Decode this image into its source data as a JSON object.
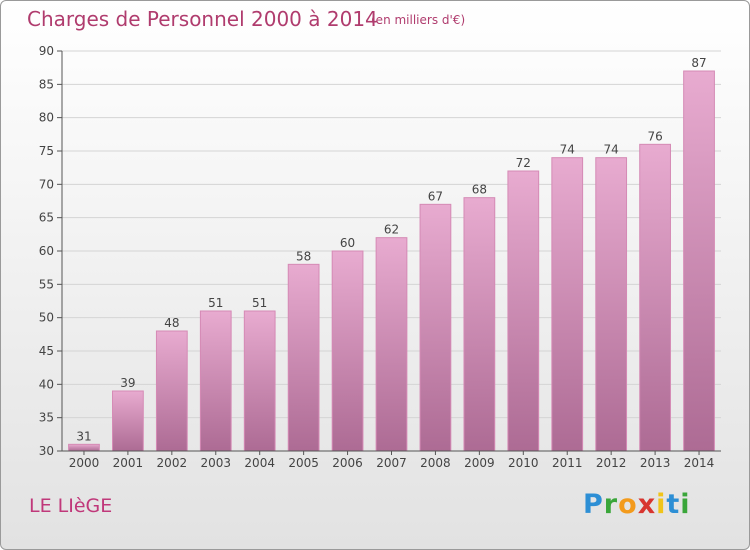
{
  "header": {
    "title": "Charges de Personnel 2000 à 2014",
    "subtitle": "(en milliers d'€)"
  },
  "footer": {
    "commune": "LE LIèGE",
    "logo": "Proxiti"
  },
  "colors": {
    "title": "#b03c6e",
    "bar_top": "#e6a6cc",
    "bar_bottom": "#ad6a93",
    "bar_edge": "#cf7fad",
    "axis": "#555555",
    "grid": "#d9d9d9"
  },
  "chart_data": {
    "type": "bar",
    "categories": [
      "2000",
      "2001",
      "2002",
      "2003",
      "2004",
      "2005",
      "2006",
      "2007",
      "2008",
      "2009",
      "2010",
      "2011",
      "2012",
      "2013",
      "2014"
    ],
    "values": [
      31,
      39,
      48,
      51,
      51,
      58,
      60,
      62,
      67,
      68,
      72,
      74,
      74,
      76,
      87
    ],
    "ylim": [
      30,
      90
    ],
    "yticks": [
      30,
      35,
      40,
      45,
      50,
      55,
      60,
      65,
      70,
      75,
      80,
      85,
      90
    ],
    "grid": true,
    "data_labels": true
  }
}
